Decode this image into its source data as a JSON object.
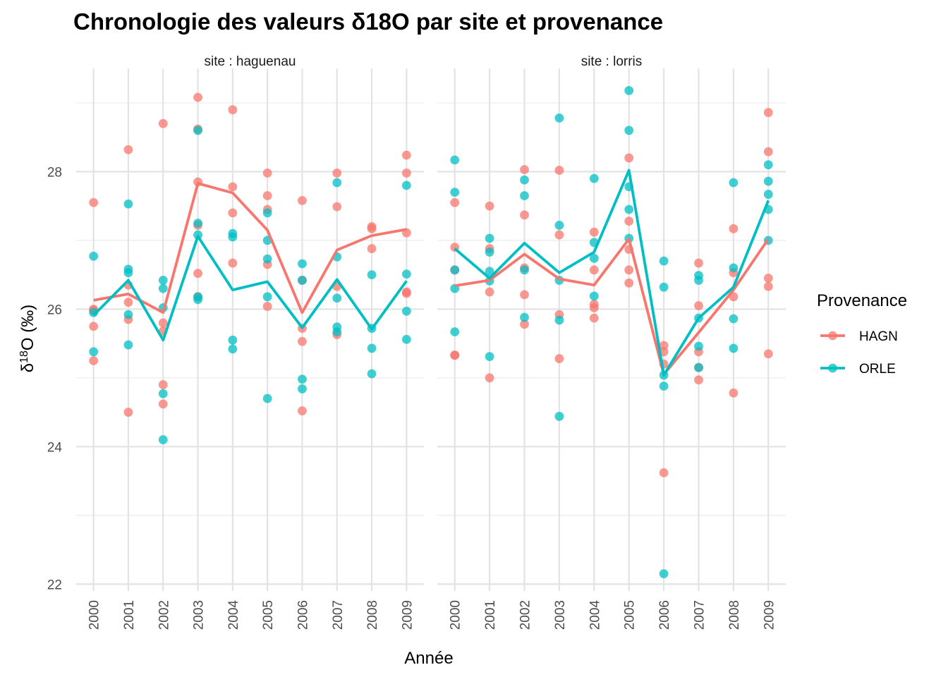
{
  "chart_data": {
    "type": "line",
    "title": "Chronologie des valeurs δ18O par site et provenance",
    "xlabel": "Année",
    "ylabel": {
      "prefix": "δ",
      "sup": "18",
      "suffix": "O (‰)"
    },
    "ylim": [
      21.9,
      29.5
    ],
    "yticks": [
      22,
      24,
      26,
      28
    ],
    "categories": [
      "2000",
      "2001",
      "2002",
      "2003",
      "2004",
      "2005",
      "2006",
      "2007",
      "2008",
      "2009"
    ],
    "grid": true,
    "legend": {
      "title": "Provenance",
      "position": "right"
    },
    "colors": {
      "HAGN": "#F8766D",
      "ORLE": "#00BFC4"
    },
    "panels": [
      {
        "label": "site : haguenau",
        "series": [
          {
            "name": "HAGN",
            "mean": [
              26.13,
              26.22,
              25.95,
              27.83,
              27.69,
              27.15,
              25.95,
              26.86,
              27.07,
              27.16
            ],
            "points": [
              [
                27.55,
                26.0,
                25.98,
                25.75,
                25.25
              ],
              [
                28.32,
                26.35,
                26.1,
                25.85,
                24.5
              ],
              [
                28.7,
                25.8,
                25.68,
                24.9,
                24.62
              ],
              [
                29.08,
                28.62,
                27.85,
                27.22,
                26.52,
                26.18
              ],
              [
                28.9,
                27.78,
                27.4,
                26.67
              ],
              [
                27.98,
                27.65,
                27.45,
                26.65,
                26.04
              ],
              [
                27.58,
                26.42,
                25.72,
                25.53,
                24.52
              ],
              [
                27.98,
                27.49,
                26.33,
                25.63
              ],
              [
                27.2,
                27.17,
                26.88
              ],
              [
                28.24,
                27.98,
                27.11,
                26.25,
                26.23
              ]
            ]
          },
          {
            "name": "ORLE",
            "mean": [
              25.91,
              26.42,
              25.55,
              27.06,
              26.28,
              26.4,
              25.73,
              26.43,
              25.71,
              26.41
            ],
            "points": [
              [
                26.77,
                25.95,
                25.38
              ],
              [
                27.53,
                26.58,
                26.53,
                25.92,
                25.48
              ],
              [
                26.42,
                26.3,
                26.02,
                24.77,
                24.1
              ],
              [
                28.6,
                27.25,
                27.08,
                26.18,
                26.14
              ],
              [
                27.1,
                27.05,
                25.55,
                25.42
              ],
              [
                27.4,
                27.0,
                26.73,
                26.18,
                24.7
              ],
              [
                26.66,
                26.42,
                24.98,
                24.84
              ],
              [
                27.84,
                26.76,
                26.16,
                25.74,
                25.67
              ],
              [
                26.5,
                25.72,
                25.43,
                25.06
              ],
              [
                27.8,
                26.51,
                25.97,
                25.56
              ]
            ]
          }
        ]
      },
      {
        "label": "site : lorris",
        "series": [
          {
            "name": "HAGN",
            "mean": [
              26.34,
              26.42,
              26.8,
              26.44,
              26.35,
              27.02,
              25.05,
              25.66,
              26.28,
              27.02
            ],
            "points": [
              [
                27.55,
                26.9,
                26.57,
                25.33,
                25.33
              ],
              [
                27.5,
                26.88,
                26.25,
                25.0
              ],
              [
                28.03,
                27.37,
                26.6,
                26.21,
                25.78
              ],
              [
                28.02,
                27.08,
                25.92,
                25.28
              ],
              [
                27.12,
                26.57,
                26.07,
                26.02,
                25.87
              ],
              [
                28.2,
                27.28,
                26.87,
                26.57,
                26.38
              ],
              [
                25.47,
                25.38,
                25.2,
                23.62
              ],
              [
                26.67,
                26.05,
                25.38,
                25.15,
                24.97
              ],
              [
                27.17,
                26.53,
                26.18,
                24.78
              ],
              [
                28.86,
                28.29,
                26.45,
                26.33,
                25.35
              ]
            ]
          },
          {
            "name": "ORLE",
            "mean": [
              26.88,
              26.45,
              26.96,
              26.53,
              26.83,
              28.02,
              25.04,
              25.87,
              26.32,
              27.58
            ],
            "points": [
              [
                28.17,
                27.7,
                26.57,
                26.3,
                25.67
              ],
              [
                27.03,
                26.55,
                26.83,
                26.41,
                25.31
              ],
              [
                27.88,
                27.65,
                26.57,
                25.88
              ],
              [
                28.78,
                27.22,
                26.42,
                25.84,
                24.44
              ],
              [
                27.9,
                26.97,
                26.74,
                26.19
              ],
              [
                29.18,
                28.6,
                27.78,
                27.45,
                27.03
              ],
              [
                26.7,
                26.32,
                25.04,
                24.88,
                22.15
              ],
              [
                26.49,
                26.42,
                25.87,
                25.46,
                25.15
              ],
              [
                27.84,
                26.6,
                25.86,
                25.43
              ],
              [
                28.1,
                27.86,
                27.67,
                27.45,
                27.0
              ]
            ]
          }
        ]
      }
    ]
  }
}
